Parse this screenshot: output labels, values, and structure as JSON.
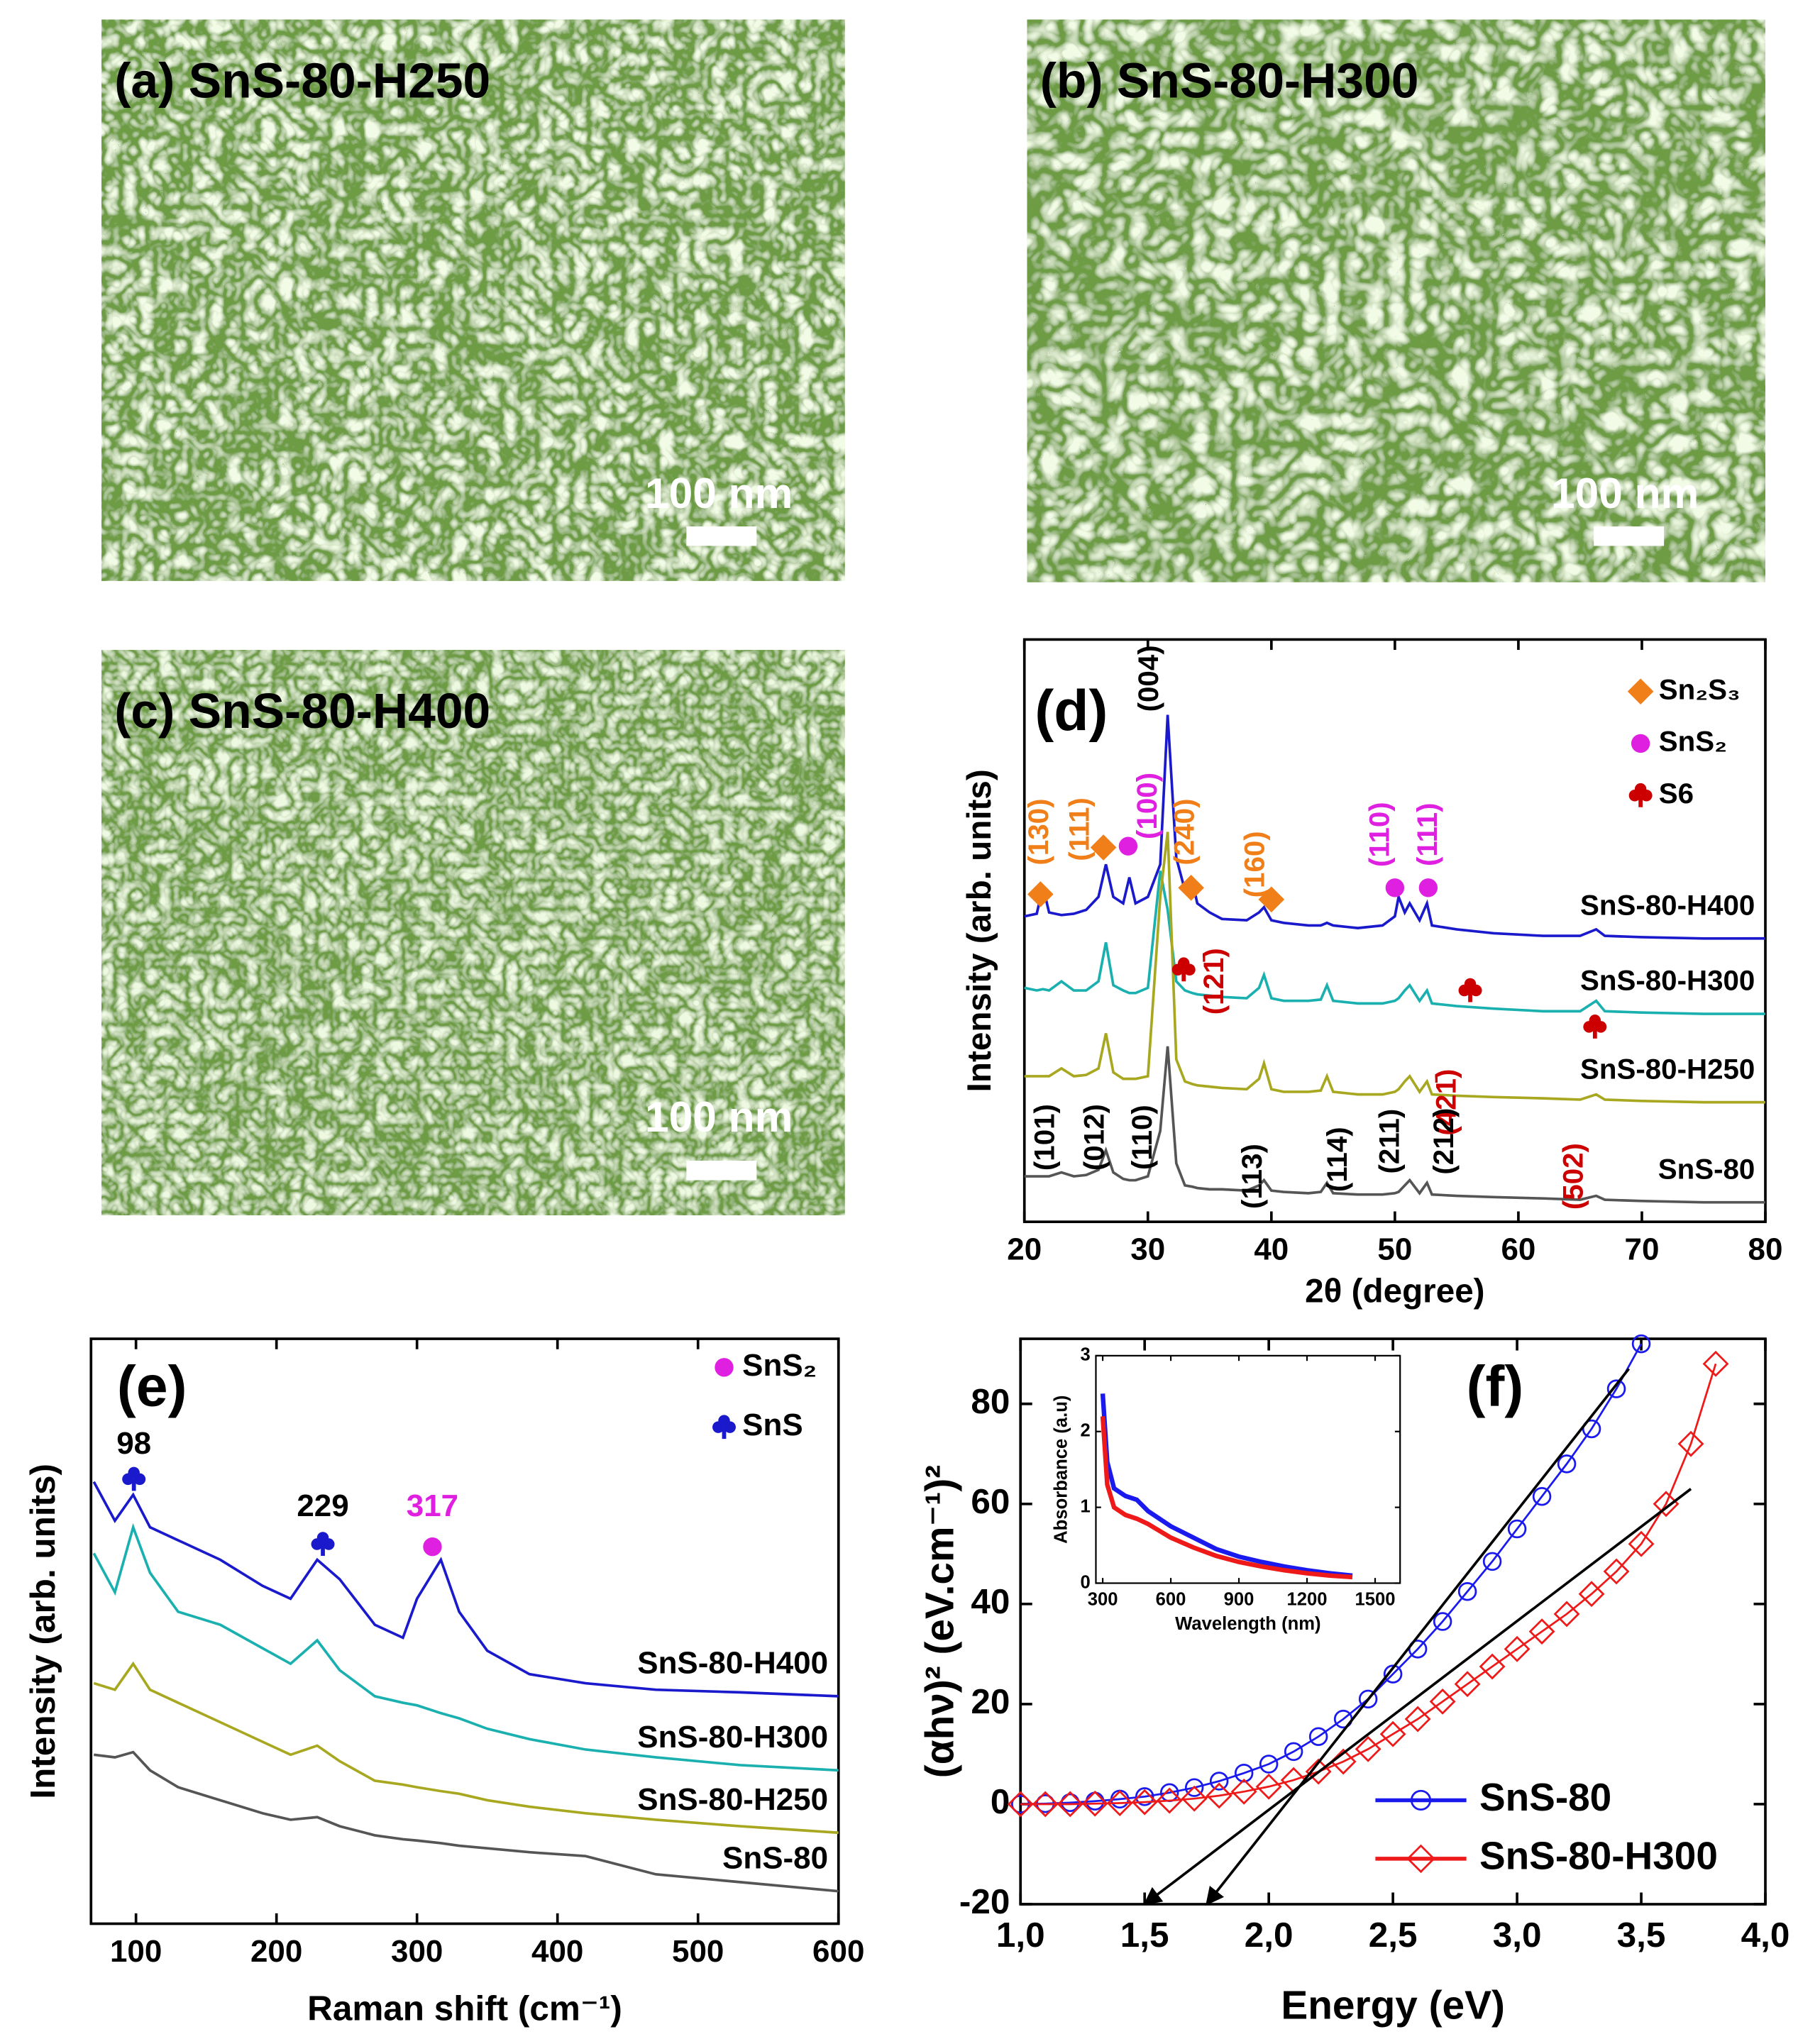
{
  "panels": [
    {
      "label": "(a) SnS-80-H250",
      "scale_bar": "100 nm"
    },
    {
      "label": "(b) SnS-80-H300",
      "scale_bar": "100 nm"
    },
    {
      "label": "(c) SnS-80-H400",
      "scale_bar": "100 nm"
    }
  ],
  "chart_data": [
    {
      "type": "line",
      "panel_label": "(d)",
      "xlabel": "2θ (degree)",
      "ylabel": "Intensity (arb. units)",
      "xlim": [
        20,
        80
      ],
      "xticks": [
        20,
        30,
        40,
        50,
        60,
        70,
        80
      ],
      "ylim": [
        0,
        448
      ],
      "x": [
        20,
        21,
        21.5,
        22,
        23,
        24,
        25,
        26,
        26.6,
        27.2,
        28,
        28.5,
        29,
        30,
        31,
        31.6,
        32.3,
        33,
        33.6,
        34,
        35,
        36,
        38,
        39,
        39.4,
        40,
        41,
        43,
        44,
        44.5,
        45,
        47,
        49,
        50,
        50.3,
        50.8,
        51.2,
        52,
        52.6,
        53,
        55,
        58,
        62,
        65,
        66.3,
        67,
        70,
        75,
        80
      ],
      "series": [
        {
          "name": "SnS-80-H400",
          "color": "#1a1acc",
          "values": [
            235,
            237,
            258,
            238,
            236,
            237,
            240,
            250,
            275,
            250,
            245,
            265,
            245,
            250,
            275,
            390,
            280,
            255,
            262,
            245,
            238,
            233,
            232,
            238,
            242,
            232,
            230,
            228,
            228,
            230,
            228,
            226,
            228,
            235,
            250,
            238,
            245,
            232,
            245,
            228,
            225,
            222,
            220,
            220,
            225,
            220,
            219,
            218,
            218
          ]
        },
        {
          "name": "SnS-80-H300",
          "color": "#1bb0b0",
          "values": [
            180,
            178,
            179,
            178,
            185,
            178,
            178,
            185,
            215,
            182,
            178,
            176,
            176,
            180,
            270,
            240,
            185,
            178,
            176,
            175,
            174,
            173,
            172,
            180,
            190,
            172,
            170,
            170,
            171,
            182,
            170,
            168,
            168,
            170,
            172,
            178,
            182,
            170,
            178,
            168,
            166,
            164,
            162,
            162,
            170,
            162,
            161,
            160,
            160
          ]
        },
        {
          "name": "SnS-80-H250",
          "color": "#a8a820",
          "values": [
            112,
            112,
            112,
            112,
            118,
            112,
            113,
            118,
            145,
            115,
            110,
            110,
            110,
            112,
            250,
            300,
            125,
            108,
            106,
            105,
            104,
            103,
            102,
            110,
            122,
            102,
            100,
            100,
            101,
            112,
            100,
            98,
            98,
            100,
            102,
            108,
            112,
            100,
            108,
            98,
            97,
            96,
            95,
            94,
            98,
            94,
            93,
            92,
            92
          ]
        },
        {
          "name": "SnS-80",
          "color": "#555555",
          "values": [
            35,
            35,
            35,
            35,
            38,
            35,
            36,
            40,
            55,
            38,
            33,
            32,
            32,
            35,
            70,
            135,
            45,
            28,
            27,
            26,
            25,
            25,
            24,
            28,
            32,
            24,
            23,
            22,
            23,
            30,
            22,
            21,
            21,
            22,
            23,
            28,
            32,
            22,
            30,
            21,
            20,
            19,
            18,
            17,
            20,
            17,
            16,
            15,
            15
          ]
        }
      ],
      "legend": "upper right",
      "legend_entries": [
        {
          "text": "Sn₂S₃",
          "marker": "diamond",
          "color": "#f07f1a"
        },
        {
          "text": "SnS₂",
          "marker": "circle",
          "color": "#e020e0"
        },
        {
          "text": "S6",
          "marker": "club",
          "color": "#cc0000"
        }
      ],
      "annotations": [
        {
          "text": "(130)",
          "x": 21.3,
          "y": 300,
          "color": "#f07f1a"
        },
        {
          "text": "(111)",
          "x": 24.6,
          "y": 302,
          "color": "#f07f1a"
        },
        {
          "text": "(100)",
          "x": 30.1,
          "y": 320,
          "color": "#e020e0"
        },
        {
          "text": "(004)",
          "x": 30.2,
          "y": 418,
          "color": "#000000"
        },
        {
          "text": "(240)",
          "x": 33.1,
          "y": 300,
          "color": "#f07f1a"
        },
        {
          "text": "(160)",
          "x": 38.8,
          "y": 275,
          "color": "#f07f1a"
        },
        {
          "text": "(110)",
          "x": 48.9,
          "y": 298,
          "color": "#e020e0"
        },
        {
          "text": "(111)",
          "x": 52.8,
          "y": 298,
          "color": "#e020e0"
        },
        {
          "text": "(121̄)",
          "x": 35.5,
          "y": 185,
          "color": "#cc0000"
        },
        {
          "text": "(421̄)",
          "x": 54.3,
          "y": 92,
          "color": "#cc0000"
        },
        {
          "text": "(502)",
          "x": 64.6,
          "y": 35,
          "color": "#cc0000"
        },
        {
          "text": "(101)",
          "x": 21.8,
          "y": 65,
          "color": "#000000"
        },
        {
          "text": "(012)",
          "x": 25.8,
          "y": 65,
          "color": "#000000"
        },
        {
          "text": "(110)",
          "x": 29.7,
          "y": 65,
          "color": "#000000"
        },
        {
          "text": "(113)",
          "x": 38.6,
          "y": 35,
          "color": "#000000"
        },
        {
          "text": "(114)",
          "x": 45.5,
          "y": 48,
          "color": "#000000"
        },
        {
          "text": "(211)",
          "x": 49.7,
          "y": 62,
          "color": "#000000"
        },
        {
          "text": "(212)",
          "x": 54.1,
          "y": 62,
          "color": "#000000"
        }
      ],
      "markers": [
        {
          "x": 21.3,
          "y": 252,
          "marker": "diamond",
          "color": "#f07f1a"
        },
        {
          "x": 26.4,
          "y": 288,
          "marker": "diamond",
          "color": "#f07f1a"
        },
        {
          "x": 33.5,
          "y": 257,
          "marker": "diamond",
          "color": "#f07f1a"
        },
        {
          "x": 40.0,
          "y": 248,
          "marker": "diamond",
          "color": "#f07f1a"
        },
        {
          "x": 28.4,
          "y": 289,
          "marker": "circle",
          "color": "#e020e0"
        },
        {
          "x": 50.0,
          "y": 257,
          "marker": "circle",
          "color": "#e020e0"
        },
        {
          "x": 52.7,
          "y": 257,
          "marker": "circle",
          "color": "#e020e0"
        },
        {
          "x": 32.9,
          "y": 194,
          "marker": "club",
          "color": "#cc0000"
        },
        {
          "x": 56.1,
          "y": 178,
          "marker": "club",
          "color": "#cc0000"
        },
        {
          "x": 66.2,
          "y": 150,
          "marker": "club",
          "color": "#cc0000"
        }
      ]
    },
    {
      "type": "line",
      "panel_label": "(e)",
      "xlabel": "Raman shift (cm⁻¹)",
      "ylabel": "Intensity (arb. units)",
      "xlim": [
        68,
        600
      ],
      "xticks": [
        100,
        200,
        300,
        400,
        500,
        600
      ],
      "ylim": [
        0,
        450
      ],
      "x": [
        70,
        85,
        98,
        110,
        130,
        160,
        190,
        210,
        229,
        245,
        270,
        290,
        300,
        317,
        330,
        350,
        380,
        420,
        470,
        530,
        600
      ],
      "series": [
        {
          "name": "SnS-80-H400",
          "color": "#1a1acc",
          "values": [
            340,
            310,
            330,
            305,
            295,
            280,
            260,
            250,
            280,
            265,
            230,
            220,
            250,
            280,
            240,
            210,
            192,
            185,
            180,
            178,
            175
          ]
        },
        {
          "name": "SnS-80-H300",
          "color": "#1bb0b0",
          "values": [
            285,
            255,
            305,
            270,
            240,
            230,
            212,
            200,
            218,
            195,
            175,
            170,
            168,
            162,
            158,
            150,
            142,
            134,
            128,
            122,
            118
          ]
        },
        {
          "name": "SnS-80-H250",
          "color": "#a8a820",
          "values": [
            185,
            180,
            200,
            180,
            170,
            155,
            140,
            130,
            137,
            125,
            110,
            107,
            105,
            102,
            100,
            95,
            90,
            85,
            80,
            75,
            70
          ]
        },
        {
          "name": "SnS-80",
          "color": "#555555",
          "values": [
            130,
            128,
            132,
            118,
            105,
            95,
            85,
            80,
            82,
            75,
            68,
            65,
            64,
            62,
            60,
            58,
            55,
            52,
            38,
            32,
            25
          ]
        }
      ],
      "legend": "upper right",
      "legend_entries": [
        {
          "text": "SnS₂",
          "marker": "circle",
          "color": "#e020e0"
        },
        {
          "text": "SnS",
          "marker": "club",
          "color": "#1a1acc"
        }
      ],
      "annotations": [
        {
          "text": "98",
          "x": 98.5,
          "y": 368,
          "color": "#000000"
        },
        {
          "text": "229",
          "x": 233,
          "y": 320,
          "color": "#000000"
        },
        {
          "text": "317",
          "x": 311,
          "y": 320,
          "color": "#e020e0"
        }
      ],
      "markers": [
        {
          "x": 98.5,
          "y": 342,
          "marker": "club",
          "color": "#1a1acc"
        },
        {
          "x": 233,
          "y": 292,
          "marker": "club",
          "color": "#1a1acc"
        },
        {
          "x": 311,
          "y": 290,
          "marker": "circle",
          "color": "#e020e0"
        }
      ]
    },
    {
      "type": "scatter",
      "panel_label": "(f)",
      "xlabel": "Energy (eV)",
      "ylabel": "(αhν)² (eV.cm⁻¹)²",
      "xlim": [
        1,
        4
      ],
      "xticks": [
        {
          "value": 1,
          "label": "1,0"
        },
        {
          "value": 1.5,
          "label": "1,5"
        },
        {
          "value": 2,
          "label": "2,0"
        },
        {
          "value": 2.5,
          "label": "2,5"
        },
        {
          "value": 3,
          "label": "3,0"
        },
        {
          "value": 3.5,
          "label": "3,5"
        },
        {
          "value": 4,
          "label": "4,0"
        }
      ],
      "ylim": [
        -20,
        93
      ],
      "yticks": [
        -20,
        0,
        20,
        40,
        60,
        80
      ],
      "legend": "lower right",
      "series": [
        {
          "name": "SnS-80",
          "color": "#1a1aee",
          "marker": "circle",
          "x": [
            1.0,
            1.1,
            1.2,
            1.3,
            1.4,
            1.5,
            1.6,
            1.7,
            1.8,
            1.9,
            2.0,
            2.1,
            2.2,
            2.3,
            2.4,
            2.5,
            2.6,
            2.7,
            2.8,
            2.9,
            3.0,
            3.1,
            3.2,
            3.3,
            3.4,
            3.5
          ],
          "values": [
            0,
            0.1,
            0.3,
            0.6,
            1,
            1.5,
            2.3,
            3.3,
            4.6,
            6.2,
            8,
            10.5,
            13.5,
            17,
            21,
            26,
            31,
            36.5,
            42.5,
            48.5,
            55,
            61.5,
            68,
            75,
            83,
            92
          ]
        },
        {
          "name": "SnS-80-H300",
          "color": "#ee1a1a",
          "marker": "diamond",
          "x": [
            1.0,
            1.1,
            1.2,
            1.3,
            1.4,
            1.5,
            1.6,
            1.7,
            1.8,
            1.9,
            2.0,
            2.1,
            2.2,
            2.3,
            2.4,
            2.5,
            2.6,
            2.7,
            2.8,
            2.9,
            3.0,
            3.1,
            3.2,
            3.3,
            3.4,
            3.5,
            3.6,
            3.7,
            3.8
          ],
          "values": [
            0,
            0,
            0,
            0.1,
            0.2,
            0.4,
            0.7,
            1.1,
            1.7,
            2.5,
            3.5,
            4.8,
            6.5,
            8.5,
            11,
            14,
            17,
            20.5,
            24,
            27.5,
            31,
            34.5,
            38,
            42,
            46.5,
            52,
            60,
            72,
            88
          ]
        }
      ],
      "fit_lines": [
        {
          "x": [
            1.75,
            3.45
          ],
          "y": [
            -20,
            87
          ]
        },
        {
          "x": [
            1.5,
            3.7
          ],
          "y": [
            -20,
            63
          ]
        }
      ],
      "inset": {
        "type": "line",
        "xlabel": "Wavelength (nm)",
        "ylabel": "Absorbance (a.u)",
        "xlim": [
          270,
          1610
        ],
        "xticks": [
          300,
          600,
          900,
          1200,
          1500
        ],
        "ylim": [
          0,
          3
        ],
        "yticks": [
          0,
          1,
          2,
          3
        ],
        "series": [
          {
            "color": "#1a1aee",
            "x": [
              300,
              320,
              350,
              400,
              450,
              500,
              600,
              700,
              800,
              900,
              1000,
              1100,
              1200,
              1300,
              1400
            ],
            "values": [
              2.5,
              1.6,
              1.25,
              1.15,
              1.1,
              0.95,
              0.75,
              0.6,
              0.45,
              0.35,
              0.28,
              0.22,
              0.17,
              0.13,
              0.1
            ]
          },
          {
            "color": "#ee1a1a",
            "x": [
              300,
              320,
              350,
              400,
              450,
              500,
              600,
              700,
              800,
              900,
              1000,
              1100,
              1200,
              1300,
              1400
            ],
            "values": [
              2.2,
              1.3,
              1.0,
              0.9,
              0.85,
              0.78,
              0.6,
              0.47,
              0.36,
              0.28,
              0.22,
              0.17,
              0.13,
              0.1,
              0.08
            ]
          }
        ]
      }
    }
  ]
}
